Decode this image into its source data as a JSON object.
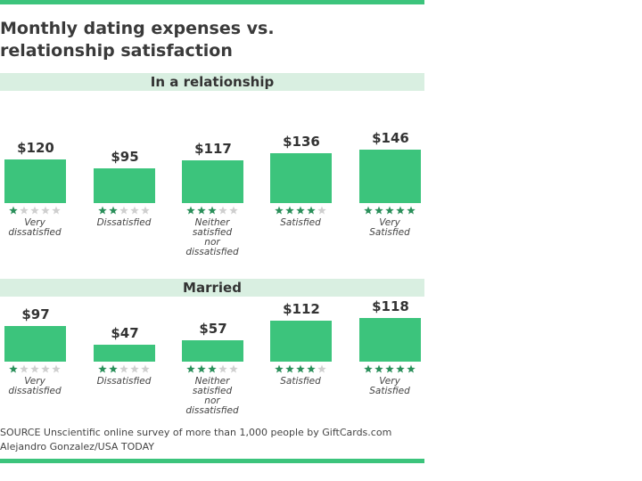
{
  "title": "Monthly dating expenses vs. relationship satisfaction",
  "chart_data": [
    {
      "type": "bar",
      "title": "In a relationship",
      "categories": [
        "Very dissatisfied",
        "Dissatisfied",
        "Neither satisfied nor dissatisfied",
        "Satisfied",
        "Very Satisfied"
      ],
      "values": [
        120,
        95,
        117,
        136,
        146
      ],
      "value_labels": [
        "$120",
        "$95",
        "$117",
        "$136",
        "$146"
      ],
      "stars": [
        1,
        2,
        3,
        4,
        5
      ],
      "color": "#3cc47c",
      "ylim": [
        0,
        160
      ]
    },
    {
      "type": "bar",
      "title": "Married",
      "categories": [
        "Very dissatisfied",
        "Dissatisfied",
        "Neither satisfied nor dissatisfied",
        "Satisfied",
        "Very Satisfied"
      ],
      "values": [
        97,
        47,
        57,
        112,
        118
      ],
      "value_labels": [
        "$97",
        "$47",
        "$57",
        "$112",
        "$118"
      ],
      "stars": [
        1,
        2,
        3,
        4,
        5
      ],
      "color": "#3cc47c",
      "ylim": [
        0,
        160
      ]
    }
  ],
  "source": "SOURCE Unscientific online survey of more than 1,000 people by GiftCards.com",
  "credit": "Alejandro Gonzalez/USA TODAY"
}
